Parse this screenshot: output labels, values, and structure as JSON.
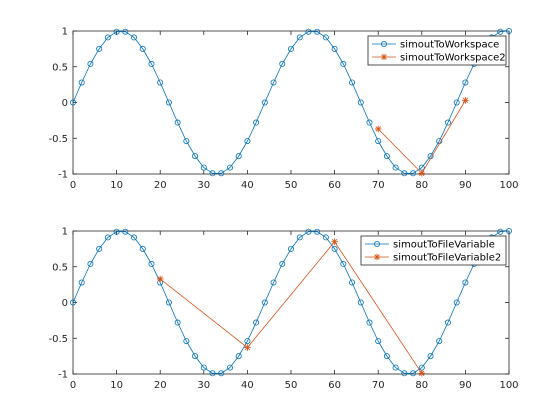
{
  "chart_data": [
    {
      "type": "line",
      "xlim": [
        0,
        100
      ],
      "ylim": [
        -1,
        1
      ],
      "x_ticks": [
        "0",
        "10",
        "20",
        "30",
        "40",
        "50",
        "60",
        "70",
        "80",
        "90",
        "100"
      ],
      "y_ticks": [
        "1",
        "0.5",
        "0",
        "-0.5",
        "-1"
      ],
      "grid": false,
      "legend_position": "top-right",
      "series": [
        {
          "name": "simoutToWorkspace",
          "color": "#0072BD",
          "marker": "circle",
          "x": [
            0,
            2,
            4,
            6,
            8,
            10,
            12,
            14,
            16,
            18,
            20,
            22,
            24,
            26,
            28,
            30,
            32,
            34,
            36,
            38,
            40,
            42,
            44,
            46,
            48,
            50,
            52,
            54,
            56,
            58,
            60,
            62,
            64,
            66,
            68,
            70,
            72,
            74,
            76,
            78,
            80,
            82,
            84,
            86,
            88,
            90,
            92,
            94,
            96,
            98,
            100
          ],
          "y": [
            0,
            0.28,
            0.54,
            0.75,
            0.91,
            0.99,
            0.99,
            0.91,
            0.75,
            0.54,
            0.28,
            0,
            -0.28,
            -0.54,
            -0.75,
            -0.91,
            -0.99,
            -0.99,
            -0.91,
            -0.75,
            -0.54,
            -0.28,
            0,
            0.28,
            0.54,
            0.75,
            0.91,
            0.99,
            0.99,
            0.91,
            0.75,
            0.54,
            0.28,
            0,
            -0.28,
            -0.54,
            -0.75,
            -0.91,
            -0.99,
            -0.99,
            -0.91,
            -0.75,
            -0.54,
            -0.28,
            0,
            0.28,
            0.54,
            0.75,
            0.91,
            0.99,
            1.0
          ]
        },
        {
          "name": "simoutToWorkspace2",
          "color": "#D95319",
          "marker": "asterisk",
          "x": [
            70,
            80,
            90
          ],
          "y": [
            -0.37,
            -0.99,
            0.03
          ]
        }
      ]
    },
    {
      "type": "line",
      "xlim": [
        0,
        100
      ],
      "ylim": [
        -1,
        1
      ],
      "x_ticks": [
        "0",
        "10",
        "20",
        "30",
        "40",
        "50",
        "60",
        "70",
        "80",
        "90",
        "100"
      ],
      "y_ticks": [
        "1",
        "0.5",
        "0",
        "-0.5",
        "-1"
      ],
      "grid": false,
      "legend_position": "top-right",
      "series": [
        {
          "name": "simoutToFileVariable",
          "color": "#0072BD",
          "marker": "circle",
          "x": [
            0,
            2,
            4,
            6,
            8,
            10,
            12,
            14,
            16,
            18,
            20,
            22,
            24,
            26,
            28,
            30,
            32,
            34,
            36,
            38,
            40,
            42,
            44,
            46,
            48,
            50,
            52,
            54,
            56,
            58,
            60,
            62,
            64,
            66,
            68,
            70,
            72,
            74,
            76,
            78,
            80,
            82,
            84,
            86,
            88,
            90,
            92,
            94,
            96,
            98,
            100
          ],
          "y": [
            0,
            0.28,
            0.54,
            0.75,
            0.91,
            0.99,
            0.99,
            0.91,
            0.75,
            0.54,
            0.28,
            0,
            -0.28,
            -0.54,
            -0.75,
            -0.91,
            -0.99,
            -0.99,
            -0.91,
            -0.75,
            -0.54,
            -0.28,
            0,
            0.28,
            0.54,
            0.75,
            0.91,
            0.99,
            0.99,
            0.91,
            0.75,
            0.54,
            0.28,
            0,
            -0.28,
            -0.54,
            -0.75,
            -0.91,
            -0.99,
            -0.99,
            -0.91,
            -0.75,
            -0.54,
            -0.28,
            0,
            0.28,
            0.54,
            0.75,
            0.91,
            0.99,
            1.0
          ]
        },
        {
          "name": "simoutToFileVariable2",
          "color": "#D95319",
          "marker": "asterisk",
          "x": [
            20,
            40,
            60,
            80
          ],
          "y": [
            0.33,
            -0.63,
            0.85,
            -0.99
          ]
        }
      ]
    }
  ]
}
